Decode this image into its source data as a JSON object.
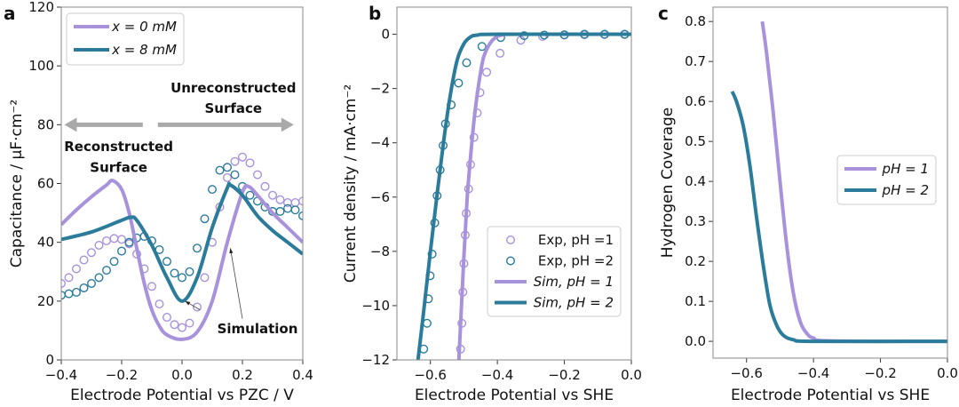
{
  "colors": {
    "purple": "#a992dc",
    "teal": "#2b7b9b",
    "arrow": "#a9a9a9"
  },
  "chart_data": [
    {
      "type": "line",
      "panel_label": "a",
      "xlabel": "Electrode Potential vs PZC / V",
      "ylabel": "Capacitance  / μF·cm⁻²",
      "xlim": [
        -0.4,
        0.4
      ],
      "ylim": [
        0,
        120
      ],
      "xticks": [
        -0.4,
        -0.2,
        0.0,
        0.2,
        0.4
      ],
      "xtick_labels": [
        "−0.4",
        "−0.2",
        "0.0",
        "0.2",
        "0.4"
      ],
      "yticks": [
        0,
        20,
        40,
        60,
        80,
        100,
        120
      ],
      "ytick_labels": [
        "0",
        "20",
        "40",
        "60",
        "80",
        "100",
        "120"
      ],
      "legend": {
        "placement": "top-left",
        "entries": [
          {
            "label": "x = 0 mM",
            "color": "purple",
            "kind": "line"
          },
          {
            "label": "x = 8 mM",
            "color": "teal",
            "kind": "line"
          }
        ]
      },
      "series": [
        {
          "name": "x = 0 mM simulation",
          "color": "purple",
          "kind": "line",
          "x": [
            -0.4,
            -0.35,
            -0.3,
            -0.25,
            -0.23,
            -0.2,
            -0.175,
            -0.15,
            -0.125,
            -0.1,
            -0.075,
            -0.05,
            0,
            0.05,
            0.1,
            0.15,
            0.2,
            0.22,
            0.25,
            0.3,
            0.35,
            0.4
          ],
          "y": [
            46,
            51,
            55.5,
            59.5,
            61,
            58,
            50,
            38,
            26,
            17,
            11.5,
            8.5,
            7,
            9.5,
            20,
            40,
            57,
            59,
            56,
            50,
            45,
            40
          ]
        },
        {
          "name": "x = 8 mM simulation",
          "color": "teal",
          "kind": "line",
          "x": [
            -0.4,
            -0.3,
            -0.2,
            -0.17,
            -0.15,
            -0.1,
            -0.05,
            0,
            0.05,
            0.1,
            0.15,
            0.16,
            0.2,
            0.25,
            0.3,
            0.35,
            0.4
          ],
          "y": [
            41,
            43.5,
            47.5,
            48.5,
            47.5,
            39,
            28,
            20,
            28,
            45,
            58.5,
            59.5,
            56,
            49,
            44,
            40,
            36
          ]
        },
        {
          "name": "x = 0 mM experiment",
          "color": "purple",
          "kind": "scatter",
          "x": [
            -0.4,
            -0.375,
            -0.35,
            -0.325,
            -0.3,
            -0.275,
            -0.25,
            -0.225,
            -0.2,
            -0.175,
            -0.15,
            -0.125,
            -0.1,
            -0.075,
            -0.05,
            -0.025,
            0,
            0.025,
            0.05,
            0.075,
            0.1,
            0.125,
            0.15,
            0.175,
            0.2,
            0.225,
            0.25,
            0.275,
            0.3,
            0.325,
            0.35,
            0.375,
            0.4
          ],
          "y": [
            26,
            28,
            31,
            34,
            36.5,
            39,
            40.5,
            41.3,
            41,
            39.5,
            36,
            31,
            25,
            19,
            14.5,
            12,
            11,
            12.5,
            18,
            28,
            40,
            52,
            62,
            67.5,
            69,
            67,
            63,
            59,
            56,
            54.5,
            53.5,
            53.5,
            54
          ]
        },
        {
          "name": "x = 8 mM experiment",
          "color": "teal",
          "kind": "scatter",
          "x": [
            -0.4,
            -0.375,
            -0.35,
            -0.325,
            -0.3,
            -0.275,
            -0.25,
            -0.225,
            -0.2,
            -0.175,
            -0.15,
            -0.125,
            -0.1,
            -0.075,
            -0.05,
            -0.025,
            0,
            0.025,
            0.05,
            0.075,
            0.1,
            0.125,
            0.15,
            0.175,
            0.2,
            0.225,
            0.25,
            0.275,
            0.3,
            0.325,
            0.35,
            0.375,
            0.4
          ],
          "y": [
            22,
            22.5,
            23,
            24.5,
            26,
            28,
            30.5,
            33.5,
            37,
            40,
            41.5,
            42,
            40.5,
            37.5,
            33.5,
            29.5,
            28,
            30,
            38,
            48,
            58,
            64.5,
            65.5,
            63,
            59,
            56,
            54,
            52,
            50.5,
            50.5,
            51.5,
            51,
            49
          ]
        }
      ],
      "annotations": [
        {
          "text": "Unreconstructed",
          "x": 0.17,
          "y": 91
        },
        {
          "text": "Surface",
          "x": 0.17,
          "y": 84
        },
        {
          "text": "Reconstructed",
          "x": -0.21,
          "y": 71
        },
        {
          "text": "Surface",
          "x": -0.21,
          "y": 64
        },
        {
          "text": "Simulation",
          "x": 0.25,
          "y": 9
        }
      ],
      "arrows": [
        {
          "from": [
            -0.13,
            80
          ],
          "to": [
            -0.39,
            80
          ],
          "style": "block"
        },
        {
          "from": [
            -0.08,
            80
          ],
          "to": [
            0.37,
            80
          ],
          "style": "block"
        },
        {
          "from": [
            0.06,
            17
          ],
          "to": [
            0.01,
            20
          ],
          "style": "thin"
        },
        {
          "from": [
            0.2,
            14
          ],
          "to": [
            0.16,
            38
          ],
          "style": "thin"
        }
      ]
    },
    {
      "type": "line",
      "panel_label": "b",
      "xlabel": "Electrode Potential vs SHE",
      "ylabel": "Current density  / mA·cm⁻²",
      "xlim": [
        -0.7,
        0.0
      ],
      "ylim": [
        -12,
        1
      ],
      "xticks": [
        -0.6,
        -0.4,
        -0.2,
        0.0
      ],
      "xtick_labels": [
        "−0.6",
        "−0.4",
        "−0.2",
        "0.0"
      ],
      "yticks": [
        0,
        -2,
        -4,
        -6,
        -8,
        -10,
        -12
      ],
      "ytick_labels": [
        "0",
        "−2",
        "−4",
        "−6",
        "−8",
        "−10",
        "−12"
      ],
      "legend": {
        "placement": "lower-right",
        "entries": [
          {
            "label": "Exp, pH =1",
            "color": "purple",
            "kind": "scatter"
          },
          {
            "label": "Exp, pH =2",
            "color": "teal",
            "kind": "scatter"
          },
          {
            "label": "Sim, pH = 1",
            "color": "purple",
            "kind": "line"
          },
          {
            "label": "Sim, pH = 2",
            "color": "teal",
            "kind": "line"
          }
        ]
      },
      "series": [
        {
          "name": "Sim, pH = 1",
          "color": "purple",
          "kind": "line",
          "x": [
            -0.515,
            -0.5,
            -0.49,
            -0.48,
            -0.47,
            -0.46,
            -0.45,
            -0.44,
            -0.42,
            -0.4,
            -0.38,
            -0.35,
            0
          ],
          "y": [
            -12,
            -8.2,
            -6.0,
            -4.5,
            -3.2,
            -2.2,
            -1.4,
            -0.8,
            -0.3,
            -0.08,
            -0.02,
            0,
            0
          ]
        },
        {
          "name": "Sim, pH = 2",
          "color": "teal",
          "kind": "line",
          "x": [
            -0.637,
            -0.62,
            -0.6,
            -0.58,
            -0.56,
            -0.54,
            -0.52,
            -0.5,
            -0.48,
            -0.46,
            -0.4,
            0
          ],
          "y": [
            -12,
            -10.2,
            -8.0,
            -5.9,
            -3.9,
            -2.2,
            -0.95,
            -0.35,
            -0.1,
            -0.03,
            0,
            0
          ]
        },
        {
          "name": "Exp, pH =1",
          "color": "purple",
          "kind": "scatter",
          "x": [
            -0.51,
            -0.506,
            -0.503,
            -0.5,
            -0.496,
            -0.493,
            -0.486,
            -0.48,
            -0.47,
            -0.46,
            -0.452,
            -0.432,
            -0.392,
            -0.33,
            -0.265,
            -0.2,
            -0.14,
            -0.08,
            -0.02
          ],
          "y": [
            -11.6,
            -10.65,
            -9.5,
            -8.45,
            -7.4,
            -6.6,
            -5.7,
            -4.8,
            -3.8,
            -2.9,
            -2.15,
            -1.4,
            -0.7,
            -0.22,
            -0.08,
            -0.03,
            -0.02,
            -0.01,
            -0.01
          ]
        },
        {
          "name": "Exp, pH =2",
          "color": "teal",
          "kind": "scatter",
          "x": [
            -0.62,
            -0.61,
            -0.606,
            -0.601,
            -0.595,
            -0.587,
            -0.58,
            -0.571,
            -0.562,
            -0.555,
            -0.538,
            -0.516,
            -0.492,
            -0.446,
            -0.39,
            -0.32,
            -0.26,
            -0.2,
            -0.14,
            -0.08,
            -0.02
          ],
          "y": [
            -11.6,
            -10.65,
            -9.75,
            -8.9,
            -8.1,
            -6.95,
            -5.95,
            -5.0,
            -4.1,
            -3.3,
            -2.6,
            -1.8,
            -1.05,
            -0.45,
            -0.12,
            -0.05,
            -0.03,
            -0.02,
            0,
            0,
            0
          ]
        }
      ]
    },
    {
      "type": "line",
      "panel_label": "c",
      "xlabel": "Electrode Potential vs SHE",
      "ylabel": "Hydrogen Coverage",
      "xlim": [
        -0.7,
        0.0
      ],
      "ylim": [
        -0.042,
        0.836
      ],
      "xticks": [
        -0.6,
        -0.4,
        -0.2,
        0.0
      ],
      "xtick_labels": [
        "−0.6",
        "−0.4",
        "−0.2",
        "0.0"
      ],
      "yticks": [
        0,
        0.1,
        0.2,
        0.3,
        0.4,
        0.5,
        0.6,
        0.7,
        0.8
      ],
      "ytick_labels": [
        "0.0",
        "0.1",
        "0.2",
        "0.3",
        "0.4",
        "0.5",
        "0.6",
        "0.7",
        "0.8"
      ],
      "legend": {
        "placement": "center-right",
        "entries": [
          {
            "label": "pH = 1",
            "color": "purple",
            "kind": "line"
          },
          {
            "label": "pH = 2",
            "color": "teal",
            "kind": "line"
          }
        ]
      },
      "series": [
        {
          "name": "pH = 1",
          "color": "purple",
          "kind": "line",
          "x": [
            -0.553,
            -0.54,
            -0.52,
            -0.5,
            -0.48,
            -0.46,
            -0.44,
            -0.42,
            -0.4,
            -0.35,
            0
          ],
          "y": [
            0.8,
            0.72,
            0.57,
            0.4,
            0.24,
            0.12,
            0.05,
            0.02,
            0.008,
            0.001,
            0
          ]
        },
        {
          "name": "pH = 2",
          "color": "teal",
          "kind": "line",
          "x": [
            -0.643,
            -0.63,
            -0.61,
            -0.59,
            -0.57,
            -0.55,
            -0.53,
            -0.51,
            -0.49,
            -0.46,
            -0.4,
            0
          ],
          "y": [
            0.625,
            0.6,
            0.54,
            0.44,
            0.31,
            0.19,
            0.09,
            0.04,
            0.015,
            0.004,
            0,
            0
          ]
        }
      ]
    }
  ]
}
